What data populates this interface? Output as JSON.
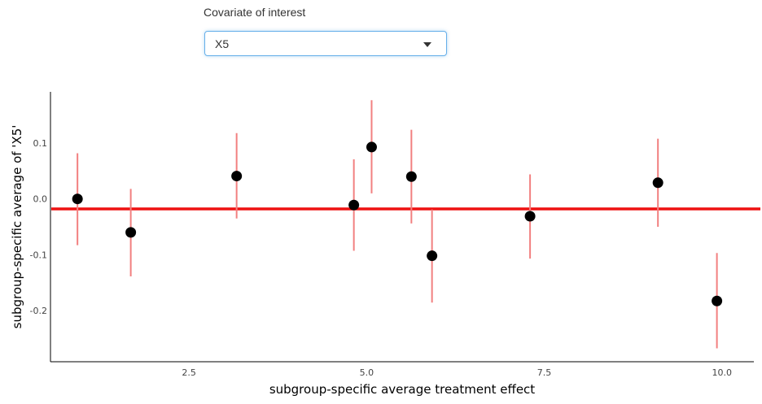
{
  "control": {
    "label": "Covariate of interest",
    "selected": "X5",
    "caret_icon": "chevron-down-icon"
  },
  "chart_data": {
    "type": "scatter",
    "xlabel": "subgroup-specific average treatment effect",
    "ylabel": "subgroup-specific average of 'X5'",
    "xlim": [
      0.55,
      10.45
    ],
    "ylim": [
      -0.292,
      0.192
    ],
    "x_ticks": [
      2.5,
      5.0,
      7.5,
      10.0
    ],
    "x_tick_labels": [
      "2.5",
      "5.0",
      "7.5",
      "10.0"
    ],
    "y_ticks": [
      -0.2,
      -0.1,
      0.0,
      0.1
    ],
    "y_tick_labels": [
      "-0.2",
      "-0.1",
      "0.0",
      "0.1"
    ],
    "grid": false,
    "reference_line": {
      "y": -0.018,
      "color": "#ee1111"
    },
    "point_color": "#000000",
    "errorbar_color": "#f28080",
    "points": [
      {
        "x": 0.93,
        "y": 0.0,
        "lo": -0.083,
        "hi": 0.082
      },
      {
        "x": 1.68,
        "y": -0.06,
        "lo": -0.139,
        "hi": 0.018
      },
      {
        "x": 3.17,
        "y": 0.041,
        "lo": -0.035,
        "hi": 0.118
      },
      {
        "x": 4.82,
        "y": -0.011,
        "lo": -0.093,
        "hi": 0.071
      },
      {
        "x": 5.07,
        "y": 0.093,
        "lo": 0.01,
        "hi": 0.177
      },
      {
        "x": 5.63,
        "y": 0.04,
        "lo": -0.044,
        "hi": 0.124
      },
      {
        "x": 5.92,
        "y": -0.102,
        "lo": -0.186,
        "hi": -0.019
      },
      {
        "x": 7.3,
        "y": -0.031,
        "lo": -0.107,
        "hi": 0.044
      },
      {
        "x": 9.1,
        "y": 0.029,
        "lo": -0.05,
        "hi": 0.108
      },
      {
        "x": 9.93,
        "y": -0.183,
        "lo": -0.268,
        "hi": -0.097
      }
    ]
  }
}
